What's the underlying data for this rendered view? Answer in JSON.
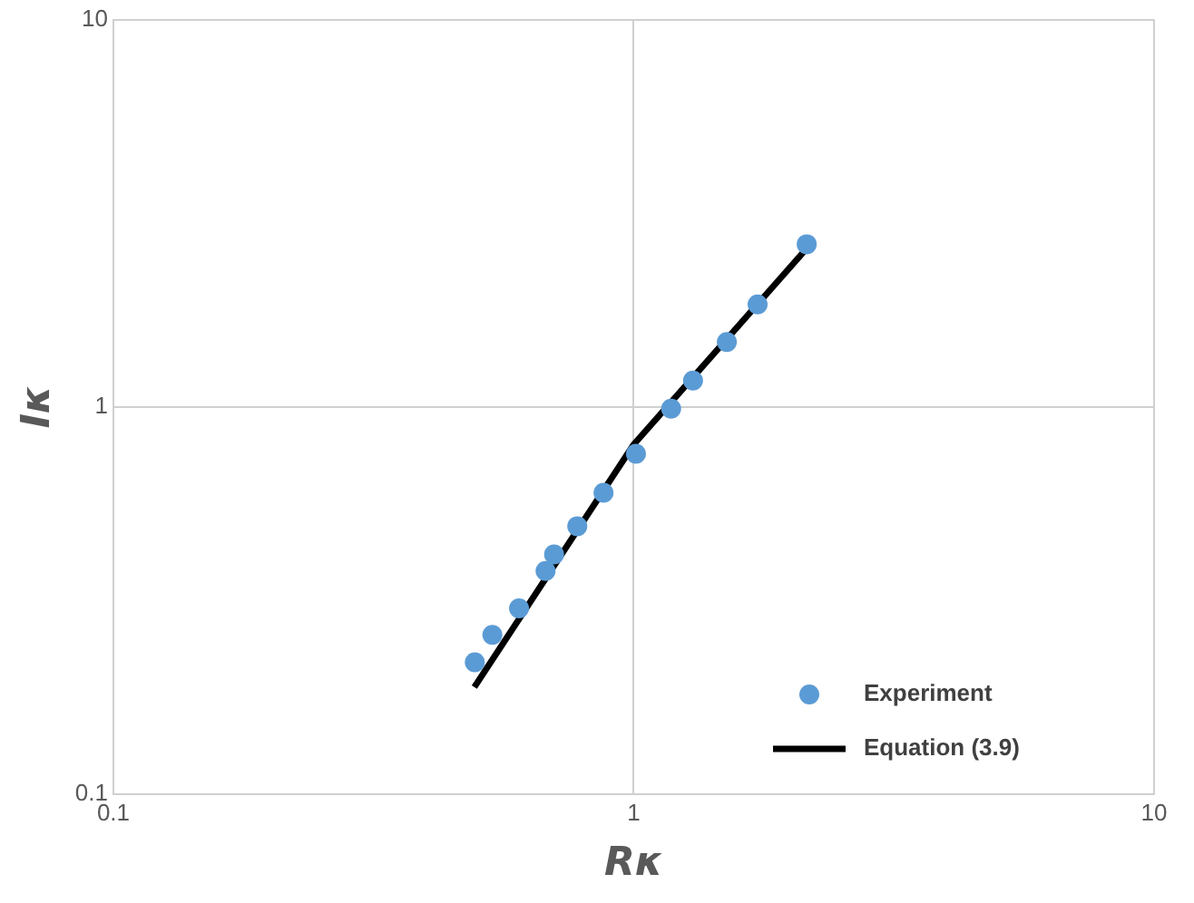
{
  "chart_data": {
    "type": "scatter",
    "xlabel": "Rκ",
    "ylabel": "Iκ",
    "log": "xy",
    "xlim": [
      0.1,
      10
    ],
    "ylim": [
      0.1,
      10
    ],
    "xticks": [
      0.1,
      1,
      10
    ],
    "yticks": [
      0.1,
      1,
      10
    ],
    "grid": true,
    "legend": "bottom right",
    "series": [
      {
        "name": "Experiment",
        "color": "#5b9bd5",
        "marker": "circle",
        "x": [
          0.495,
          0.535,
          0.602,
          0.677,
          0.703,
          0.779,
          0.875,
          1.01,
          1.18,
          1.3,
          1.51,
          1.73,
          2.15
        ],
        "values": [
          0.219,
          0.258,
          0.302,
          0.377,
          0.416,
          0.492,
          0.6,
          0.757,
          0.99,
          1.17,
          1.47,
          1.84,
          2.63
        ]
      },
      {
        "name": "Equation (3.9)",
        "type": "line",
        "color": "#000000",
        "marker": "none",
        "line_style": "solid",
        "x": [
          0.494,
          1,
          2.12
        ],
        "values": [
          0.189,
          0.8,
          2.51
        ]
      }
    ]
  }
}
